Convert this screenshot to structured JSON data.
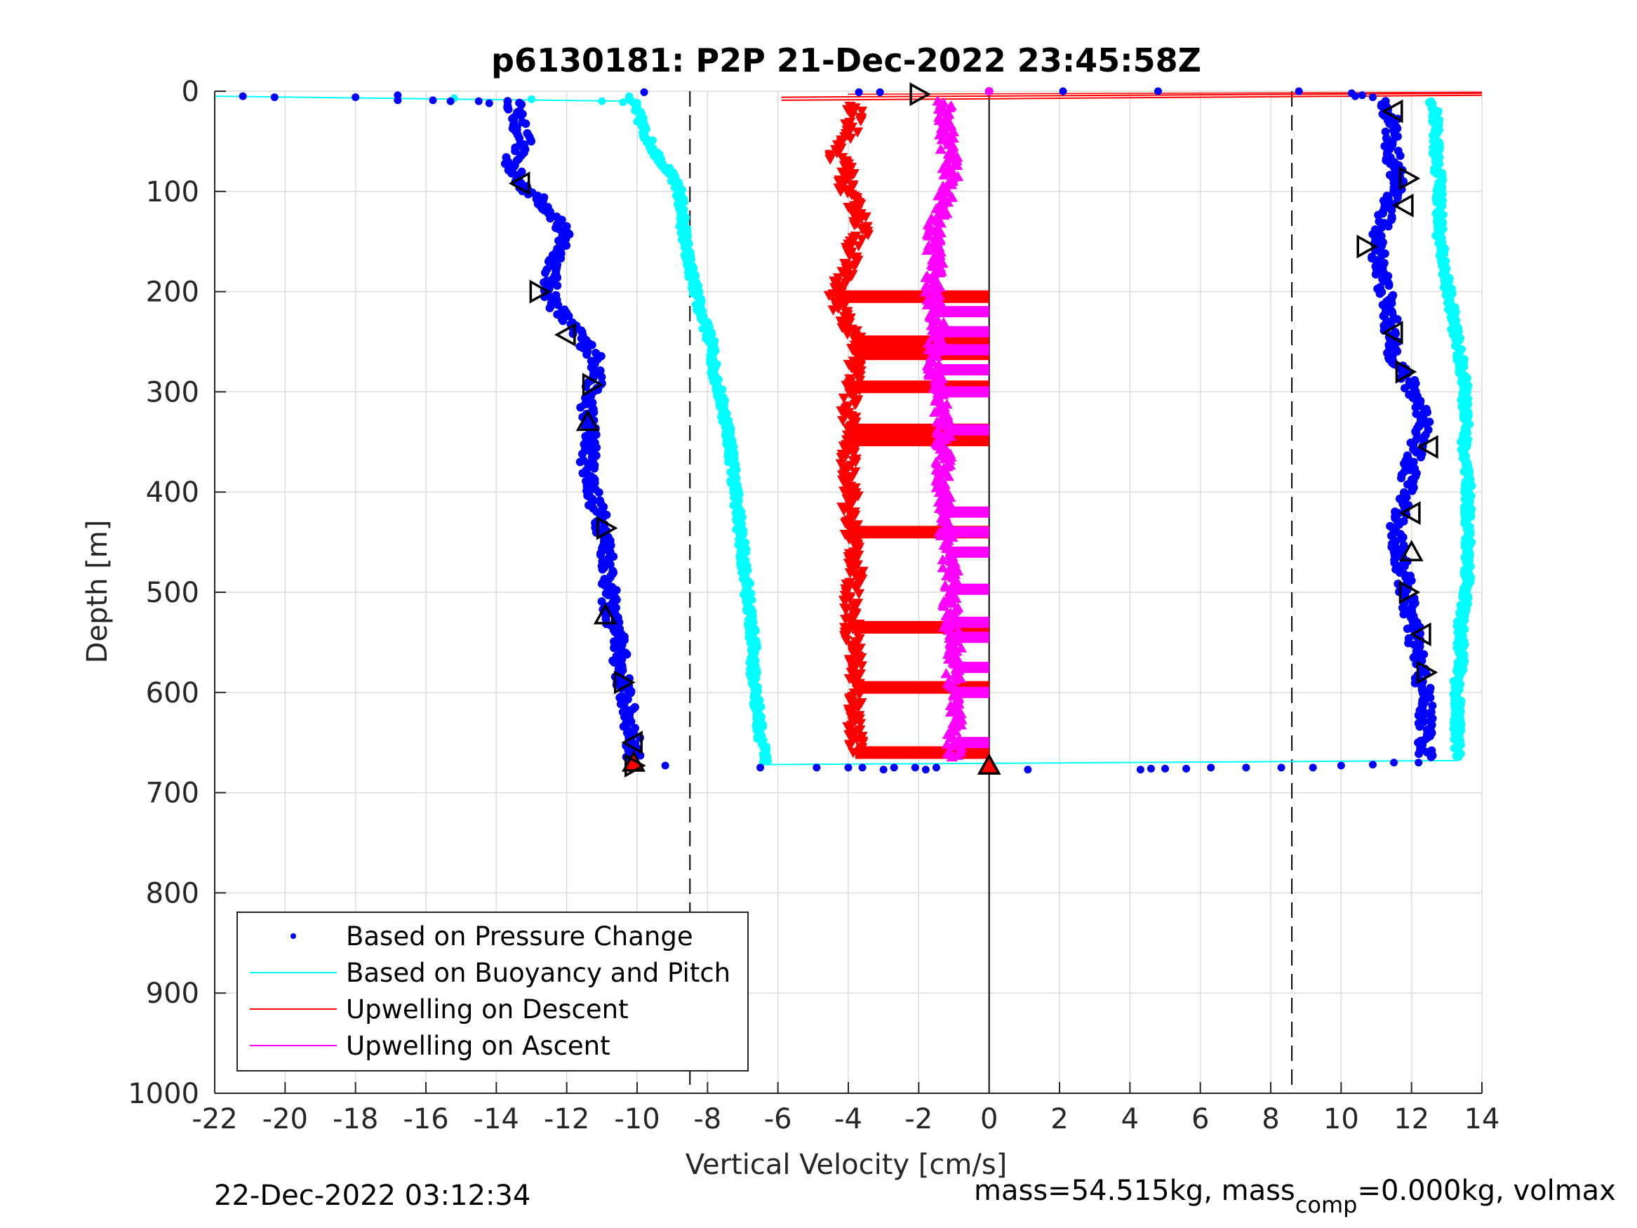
{
  "chart_data": {
    "type": "scatter",
    "title": "p6130181: P2P 21-Dec-2022 23:45:58Z",
    "xlabel": "Vertical Velocity [cm/s]",
    "ylabel": "Depth [m]",
    "xlim": [
      -22,
      14
    ],
    "ylim": [
      0,
      1000
    ],
    "y_reversed": true,
    "grid": true,
    "xticks": [
      -22,
      -20,
      -18,
      -16,
      -14,
      -12,
      -10,
      -8,
      -6,
      -4,
      -2,
      0,
      2,
      4,
      6,
      8,
      10,
      12,
      14
    ],
    "xtick_labels": [
      "-22",
      "-20",
      "-18",
      "-16",
      "-14",
      "-12",
      "-10",
      "-8",
      "-6",
      "-4",
      "-2",
      "0",
      "2",
      "4",
      "6",
      "8",
      "10",
      "12",
      "14"
    ],
    "yticks": [
      0,
      100,
      200,
      300,
      400,
      500,
      600,
      700,
      800,
      900,
      1000
    ],
    "ytick_labels": [
      "0",
      "100",
      "200",
      "300",
      "400",
      "500",
      "600",
      "700",
      "800",
      "900",
      "1000"
    ],
    "dashed_lines_x": [
      -8.5,
      8.6
    ],
    "zero_line_x": 0,
    "legend_position": "bottom-left",
    "legend": [
      {
        "label": "Based on Pressure Change",
        "color": "#0000ff",
        "style": "dot"
      },
      {
        "label": "Based on Buoyancy and Pitch",
        "color": "#00ffff",
        "style": "line"
      },
      {
        "label": "Upwelling on Descent",
        "color": "#ff0000",
        "style": "line"
      },
      {
        "label": "Upwelling on Ascent",
        "color": "#ff00ff",
        "style": "line"
      }
    ],
    "series": [
      {
        "name": "Based on Pressure Change",
        "segment": "descent",
        "color": "#0000ff",
        "profile": [
          [
            10,
            -13.5
          ],
          [
            30,
            -13.4
          ],
          [
            50,
            -13.2
          ],
          [
            70,
            -13.6
          ],
          [
            90,
            -13.4
          ],
          [
            110,
            -12.7
          ],
          [
            130,
            -12.2
          ],
          [
            150,
            -12.1
          ],
          [
            170,
            -12.3
          ],
          [
            190,
            -12.5
          ],
          [
            210,
            -12.4
          ],
          [
            230,
            -12.0
          ],
          [
            250,
            -11.5
          ],
          [
            270,
            -11.1
          ],
          [
            290,
            -11.2
          ],
          [
            310,
            -11.4
          ],
          [
            330,
            -11.4
          ],
          [
            350,
            -11.3
          ],
          [
            370,
            -11.4
          ],
          [
            390,
            -11.3
          ],
          [
            410,
            -11.2
          ],
          [
            430,
            -11.0
          ],
          [
            450,
            -10.9
          ],
          [
            470,
            -10.8
          ],
          [
            490,
            -10.8
          ],
          [
            510,
            -10.8
          ],
          [
            530,
            -10.7
          ],
          [
            550,
            -10.5
          ],
          [
            570,
            -10.5
          ],
          [
            590,
            -10.4
          ],
          [
            610,
            -10.3
          ],
          [
            630,
            -10.2
          ],
          [
            650,
            -10.1
          ],
          [
            665,
            -10.1
          ]
        ]
      },
      {
        "name": "Based on Buoyancy and Pitch",
        "segment": "descent",
        "color": "#00ffff",
        "profile": [
          [
            5,
            -10.2
          ],
          [
            20,
            -10.0
          ],
          [
            40,
            -9.8
          ],
          [
            60,
            -9.5
          ],
          [
            80,
            -9.1
          ],
          [
            100,
            -8.8
          ],
          [
            130,
            -8.7
          ],
          [
            160,
            -8.6
          ],
          [
            190,
            -8.4
          ],
          [
            220,
            -8.2
          ],
          [
            250,
            -7.9
          ],
          [
            280,
            -7.8
          ],
          [
            310,
            -7.6
          ],
          [
            340,
            -7.4
          ],
          [
            370,
            -7.3
          ],
          [
            400,
            -7.2
          ],
          [
            430,
            -7.1
          ],
          [
            460,
            -7.0
          ],
          [
            490,
            -6.9
          ],
          [
            520,
            -6.8
          ],
          [
            550,
            -6.7
          ],
          [
            580,
            -6.7
          ],
          [
            610,
            -6.6
          ],
          [
            640,
            -6.5
          ],
          [
            660,
            -6.4
          ],
          [
            670,
            -6.4
          ]
        ]
      },
      {
        "name": "Upwelling on Descent",
        "segment": "descent",
        "color": "#ff0000",
        "profile": [
          [
            15,
            -3.8
          ],
          [
            40,
            -3.9
          ],
          [
            60,
            -4.5
          ],
          [
            80,
            -4.0
          ],
          [
            100,
            -4.1
          ],
          [
            120,
            -3.7
          ],
          [
            140,
            -3.6
          ],
          [
            160,
            -3.9
          ],
          [
            180,
            -4.0
          ],
          [
            200,
            -4.4
          ],
          [
            220,
            -4.2
          ],
          [
            240,
            -3.9
          ],
          [
            260,
            -3.8
          ],
          [
            280,
            -3.8
          ],
          [
            300,
            -3.9
          ],
          [
            320,
            -4.0
          ],
          [
            340,
            -3.9
          ],
          [
            360,
            -4.0
          ],
          [
            380,
            -4.0
          ],
          [
            400,
            -3.9
          ],
          [
            420,
            -4.0
          ],
          [
            440,
            -3.9
          ],
          [
            460,
            -3.8
          ],
          [
            480,
            -3.8
          ],
          [
            500,
            -3.9
          ],
          [
            520,
            -3.9
          ],
          [
            540,
            -3.9
          ],
          [
            560,
            -3.8
          ],
          [
            580,
            -3.8
          ],
          [
            600,
            -3.8
          ],
          [
            620,
            -3.8
          ],
          [
            640,
            -3.8
          ],
          [
            660,
            -3.8
          ]
        ]
      },
      {
        "name": "Upwelling on Ascent",
        "segment": "ascent",
        "color": "#ff00ff",
        "profile": [
          [
            10,
            -1.3
          ],
          [
            30,
            -1.2
          ],
          [
            50,
            -1.2
          ],
          [
            70,
            -1.1
          ],
          [
            90,
            -1.1
          ],
          [
            110,
            -1.3
          ],
          [
            130,
            -1.5
          ],
          [
            150,
            -1.6
          ],
          [
            170,
            -1.5
          ],
          [
            190,
            -1.6
          ],
          [
            210,
            -1.6
          ],
          [
            230,
            -1.5
          ],
          [
            250,
            -1.5
          ],
          [
            270,
            -1.6
          ],
          [
            290,
            -1.5
          ],
          [
            310,
            -1.4
          ],
          [
            330,
            -1.3
          ],
          [
            350,
            -1.3
          ],
          [
            370,
            -1.3
          ],
          [
            390,
            -1.3
          ],
          [
            410,
            -1.3
          ],
          [
            430,
            -1.2
          ],
          [
            450,
            -1.2
          ],
          [
            470,
            -1.1
          ],
          [
            490,
            -1.1
          ],
          [
            510,
            -1.1
          ],
          [
            530,
            -1.1
          ],
          [
            550,
            -1.0
          ],
          [
            570,
            -1.0
          ],
          [
            590,
            -1.0
          ],
          [
            610,
            -1.0
          ],
          [
            630,
            -1.0
          ],
          [
            650,
            -1.0
          ],
          [
            665,
            -1.0
          ]
        ]
      },
      {
        "name": "Based on Pressure Change",
        "segment": "ascent",
        "color": "#0000ff",
        "profile": [
          [
            10,
            11.2
          ],
          [
            30,
            11.5
          ],
          [
            50,
            11.4
          ],
          [
            70,
            11.5
          ],
          [
            90,
            11.6
          ],
          [
            110,
            11.4
          ],
          [
            130,
            11.2
          ],
          [
            150,
            11.0
          ],
          [
            170,
            11.1
          ],
          [
            190,
            11.2
          ],
          [
            210,
            11.3
          ],
          [
            230,
            11.4
          ],
          [
            250,
            11.4
          ],
          [
            270,
            11.6
          ],
          [
            290,
            11.9
          ],
          [
            310,
            12.2
          ],
          [
            330,
            12.4
          ],
          [
            350,
            12.2
          ],
          [
            370,
            12.0
          ],
          [
            390,
            11.9
          ],
          [
            410,
            11.8
          ],
          [
            430,
            11.6
          ],
          [
            450,
            11.6
          ],
          [
            470,
            11.7
          ],
          [
            490,
            11.8
          ],
          [
            510,
            11.9
          ],
          [
            530,
            12.0
          ],
          [
            550,
            12.1
          ],
          [
            570,
            12.2
          ],
          [
            590,
            12.3
          ],
          [
            610,
            12.4
          ],
          [
            630,
            12.4
          ],
          [
            650,
            12.4
          ],
          [
            665,
            12.4
          ]
        ]
      },
      {
        "name": "Based on Buoyancy and Pitch",
        "segment": "ascent",
        "color": "#00ffff",
        "profile": [
          [
            10,
            12.6
          ],
          [
            30,
            12.7
          ],
          [
            50,
            12.7
          ],
          [
            70,
            12.7
          ],
          [
            90,
            12.8
          ],
          [
            110,
            12.8
          ],
          [
            130,
            12.8
          ],
          [
            150,
            12.8
          ],
          [
            170,
            12.9
          ],
          [
            190,
            13.0
          ],
          [
            210,
            13.1
          ],
          [
            230,
            13.2
          ],
          [
            250,
            13.3
          ],
          [
            270,
            13.4
          ],
          [
            290,
            13.5
          ],
          [
            310,
            13.5
          ],
          [
            330,
            13.6
          ],
          [
            350,
            13.5
          ],
          [
            370,
            13.5
          ],
          [
            390,
            13.6
          ],
          [
            410,
            13.6
          ],
          [
            430,
            13.6
          ],
          [
            450,
            13.6
          ],
          [
            470,
            13.6
          ],
          [
            490,
            13.6
          ],
          [
            510,
            13.5
          ],
          [
            530,
            13.4
          ],
          [
            550,
            13.4
          ],
          [
            570,
            13.4
          ],
          [
            590,
            13.3
          ],
          [
            610,
            13.3
          ],
          [
            630,
            13.3
          ],
          [
            650,
            13.3
          ],
          [
            665,
            13.3
          ]
        ]
      }
    ],
    "surface_points_pressure": [
      [
        -21.2,
        5
      ],
      [
        -20.3,
        6
      ],
      [
        -18.0,
        6
      ],
      [
        -16.8,
        4
      ],
      [
        -16.8,
        9
      ],
      [
        -15.8,
        9
      ],
      [
        -15.3,
        10
      ],
      [
        -14.5,
        10
      ],
      [
        -14.2,
        12
      ],
      [
        -9.8,
        1
      ],
      [
        -3.7,
        1
      ],
      [
        -3.1,
        1
      ],
      [
        2.1,
        0
      ],
      [
        4.8,
        0
      ],
      [
        8.8,
        0
      ],
      [
        10.3,
        2
      ],
      [
        10.4,
        5
      ],
      [
        10.6,
        4
      ],
      [
        10.9,
        6
      ]
    ],
    "bottom_points_pressure": [
      [
        -9.2,
        673
      ],
      [
        -6.5,
        675
      ],
      [
        -4.9,
        675
      ],
      [
        -4.0,
        675
      ],
      [
        -3.6,
        675
      ],
      [
        -3.0,
        677
      ],
      [
        -2.7,
        675
      ],
      [
        -2.1,
        675
      ],
      [
        -1.8,
        677
      ],
      [
        -1.5,
        675
      ],
      [
        1.1,
        677
      ],
      [
        4.3,
        677
      ],
      [
        4.6,
        676
      ],
      [
        5.0,
        676
      ],
      [
        5.6,
        676
      ],
      [
        6.3,
        675
      ],
      [
        7.3,
        675
      ],
      [
        8.3,
        675
      ],
      [
        9.2,
        675
      ],
      [
        10.0,
        673
      ],
      [
        10.9,
        672
      ],
      [
        11.5,
        670
      ],
      [
        12.2,
        670
      ]
    ],
    "surface_points_buoyancy": [
      [
        -15.2,
        7
      ],
      [
        -13.0,
        8
      ],
      [
        -11.0,
        10
      ],
      [
        -10.4,
        11
      ],
      [
        -10.1,
        11
      ]
    ],
    "horizontal_red_bands_depths": [
      205,
      250,
      262,
      295,
      338,
      348,
      440,
      535,
      595,
      660
    ],
    "horizontal_magenta_bands_depths": [
      220,
      240,
      258,
      278,
      300,
      338,
      420,
      440,
      460,
      497,
      530,
      545,
      575,
      600,
      650
    ],
    "triangle_markers": [
      {
        "x": -13.3,
        "y": 92,
        "dir": "left",
        "fill": "none"
      },
      {
        "x": -12.8,
        "y": 200,
        "dir": "right",
        "fill": "none"
      },
      {
        "x": -12.0,
        "y": 243,
        "dir": "left",
        "fill": "none"
      },
      {
        "x": -11.3,
        "y": 293,
        "dir": "right",
        "fill": "none"
      },
      {
        "x": -11.4,
        "y": 330,
        "dir": "up",
        "fill": "none"
      },
      {
        "x": -10.9,
        "y": 436,
        "dir": "right",
        "fill": "none"
      },
      {
        "x": -10.9,
        "y": 523,
        "dir": "up",
        "fill": "none"
      },
      {
        "x": -10.4,
        "y": 590,
        "dir": "right",
        "fill": "none"
      },
      {
        "x": -10.1,
        "y": 650,
        "dir": "left",
        "fill": "none"
      },
      {
        "x": -10.1,
        "y": 670,
        "dir": "up",
        "fill": "red"
      },
      {
        "x": -10.1,
        "y": 673,
        "dir": "right",
        "fill": "none"
      },
      {
        "x": -2.0,
        "y": 3,
        "dir": "right",
        "fill": "none"
      },
      {
        "x": 0.0,
        "y": 673,
        "dir": "up",
        "fill": "red"
      },
      {
        "x": 11.5,
        "y": 20,
        "dir": "left",
        "fill": "none"
      },
      {
        "x": 11.9,
        "y": 87,
        "dir": "right",
        "fill": "none"
      },
      {
        "x": 11.8,
        "y": 114,
        "dir": "left",
        "fill": "none"
      },
      {
        "x": 10.7,
        "y": 155,
        "dir": "right",
        "fill": "none"
      },
      {
        "x": 11.5,
        "y": 241,
        "dir": "left",
        "fill": "none"
      },
      {
        "x": 11.8,
        "y": 280,
        "dir": "right",
        "fill": "none"
      },
      {
        "x": 12.5,
        "y": 355,
        "dir": "left",
        "fill": "none"
      },
      {
        "x": 12.0,
        "y": 421,
        "dir": "left",
        "fill": "none"
      },
      {
        "x": 12.0,
        "y": 460,
        "dir": "up",
        "fill": "none"
      },
      {
        "x": 11.9,
        "y": 500,
        "dir": "right",
        "fill": "none"
      },
      {
        "x": 12.3,
        "y": 542,
        "dir": "left",
        "fill": "none"
      },
      {
        "x": 12.4,
        "y": 580,
        "dir": "right",
        "fill": "none"
      }
    ]
  },
  "footer": {
    "left_text": "22-Dec-2022 03:12:34",
    "right_text_main": "mass=54.515kg, mass",
    "right_text_sub": "comp",
    "right_text_rest": "=0.000kg, volmax"
  }
}
